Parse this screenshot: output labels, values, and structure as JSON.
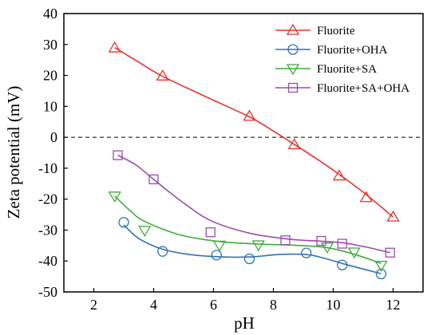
{
  "chart_data": {
    "type": "scatter",
    "xlabel": "pH",
    "ylabel": "Zeta potential (mV)",
    "xlim": [
      1,
      13
    ],
    "ylim": [
      -50,
      40
    ],
    "xticks": [
      2,
      4,
      6,
      8,
      10,
      12
    ],
    "yticks": [
      -50,
      -40,
      -30,
      -20,
      -10,
      0,
      10,
      20,
      30,
      40
    ],
    "reference_line": {
      "y": 0,
      "style": "dashed"
    },
    "legend_position": "top-right",
    "series": [
      {
        "name": "Fluorite",
        "color": "#e8322d",
        "marker": "triangle-up",
        "x": [
          2.7,
          4.3,
          7.2,
          8.7,
          10.2,
          11.1,
          12.0
        ],
        "y": [
          28.9,
          19.8,
          6.8,
          -2.4,
          -12.5,
          -19.5,
          -25.8
        ],
        "fit_x": [
          2.7,
          3.5,
          4.3,
          5.7,
          7.2,
          8.0,
          8.7,
          9.5,
          10.2,
          11.1,
          12.0
        ],
        "fit_y": [
          29.0,
          24.3,
          19.7,
          13.3,
          6.6,
          2.0,
          -2.3,
          -7.3,
          -12.0,
          -18.5,
          -25.8
        ]
      },
      {
        "name": "Fluorite+OHA",
        "color": "#2e73b5",
        "marker": "circle",
        "x": [
          3.0,
          4.3,
          6.1,
          7.2,
          9.1,
          10.3,
          11.6
        ],
        "y": [
          -27.5,
          -36.9,
          -38.1,
          -39.3,
          -37.4,
          -41.3,
          -44.2
        ],
        "fit_x": [
          3.0,
          3.5,
          4.3,
          5.2,
          6.1,
          7.2,
          8.2,
          9.1,
          9.7,
          10.3,
          11.0,
          11.6
        ],
        "fit_y": [
          -28.3,
          -32.7,
          -36.2,
          -37.9,
          -38.6,
          -38.7,
          -37.9,
          -37.9,
          -39.1,
          -40.8,
          -42.6,
          -44.1
        ]
      },
      {
        "name": "Fluorite+SA",
        "color": "#3fac3b",
        "marker": "triangle-down",
        "x": [
          2.7,
          3.7,
          6.2,
          7.5,
          9.8,
          10.7,
          11.6
        ],
        "y": [
          -19.0,
          -30.1,
          -34.9,
          -34.8,
          -35.5,
          -37.1,
          -41.4
        ],
        "fit_x": [
          2.7,
          3.2,
          3.7,
          4.9,
          6.2,
          7.5,
          8.7,
          9.8,
          10.7,
          11.6
        ],
        "fit_y": [
          -19.0,
          -23.6,
          -27.2,
          -31.6,
          -33.7,
          -34.5,
          -34.9,
          -35.7,
          -37.8,
          -40.8
        ]
      },
      {
        "name": "Fluorite+SA+OHA",
        "color": "#9b4bb0",
        "marker": "square",
        "x": [
          2.8,
          4.0,
          5.9,
          8.4,
          9.6,
          10.3,
          11.9
        ],
        "y": [
          -5.8,
          -13.6,
          -30.7,
          -33.3,
          -33.5,
          -34.4,
          -37.3
        ],
        "fit_x": [
          2.8,
          3.4,
          4.0,
          4.9,
          5.9,
          7.2,
          8.4,
          9.0,
          9.6,
          10.3,
          11.1,
          11.9
        ],
        "fit_y": [
          -5.8,
          -8.9,
          -13.6,
          -20.5,
          -26.9,
          -31.0,
          -32.8,
          -33.3,
          -33.6,
          -34.1,
          -35.5,
          -37.3
        ]
      }
    ]
  }
}
